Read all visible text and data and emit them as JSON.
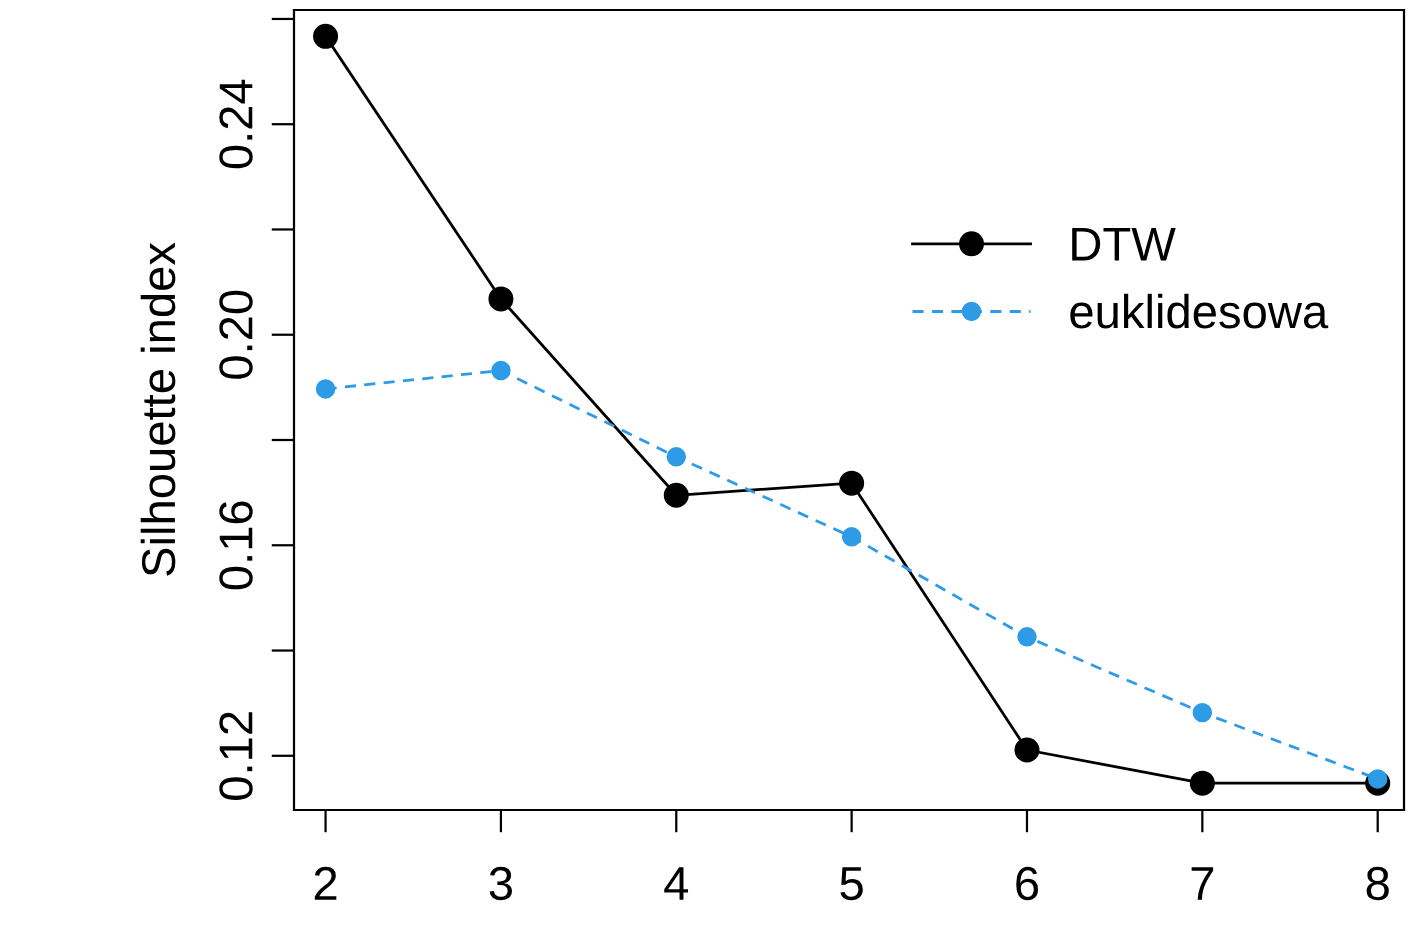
{
  "chart_data": {
    "type": "line",
    "ylabel": "Silhouette index",
    "x": [
      2,
      3,
      4,
      5,
      6,
      7,
      8
    ],
    "series": [
      {
        "name": "DTW",
        "color": "#000000",
        "values": [
          0.2567,
          0.2068,
          0.1695,
          0.1718,
          0.1211,
          0.1148,
          0.1148
        ],
        "line_style": "solid",
        "marker": "circle"
      },
      {
        "name": "euklidesowa",
        "color": "#2e9be6",
        "values": [
          0.1897,
          0.1932,
          0.1768,
          0.1616,
          0.1426,
          0.1282,
          0.1156
        ],
        "line_style": "dashed",
        "marker": "circle"
      }
    ],
    "xlim": [
      1.82,
      8.15
    ],
    "xticks": [
      2,
      3,
      4,
      5,
      6,
      7,
      8
    ],
    "ylim": [
      0.1097,
      0.2617
    ],
    "yticks": [
      {
        "value": 0.12,
        "label": "0.12"
      },
      {
        "value": 0.14,
        "label": null
      },
      {
        "value": 0.16,
        "label": "0.16"
      },
      {
        "value": 0.18,
        "label": null
      },
      {
        "value": 0.2,
        "label": "0.20"
      },
      {
        "value": 0.22,
        "label": null
      },
      {
        "value": 0.24,
        "label": "0.24"
      },
      {
        "value": 0.26,
        "label": null
      }
    ],
    "grid": false,
    "legend": "right"
  }
}
